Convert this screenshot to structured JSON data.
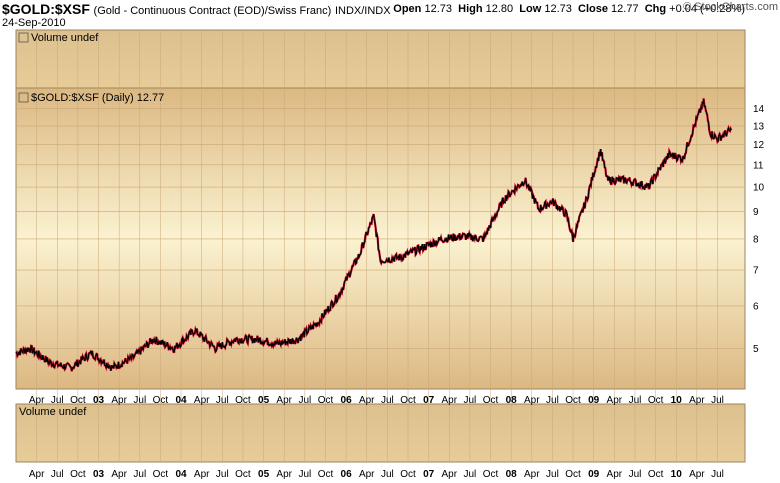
{
  "header": {
    "symbol": "$GOLD:$XSF",
    "description": "(Gold - Continuous Contract (EOD)/Swiss Franc)",
    "exchange": "INDX/INDX",
    "date": "24-Sep-2010",
    "open_label": "Open",
    "open": "12.73",
    "high_label": "High",
    "high": "12.80",
    "low_label": "Low",
    "low": "12.73",
    "close_label": "Close",
    "close": "12.77",
    "chg_label": "Chg",
    "chg": "+0.04 (+0.28%)",
    "brand": "© StockCharts.com"
  },
  "volume_top_label": "Volume undef",
  "volume_bottom_label": "Volume undef",
  "price_label": "$GOLD:$XSF (Daily) 12.77",
  "colors": {
    "bg_light": "#fbf2d0",
    "bg_dark": "#dcb882",
    "line": "#000000",
    "down": "#d01030",
    "grid": "#c8a878"
  },
  "chart_data": {
    "type": "line",
    "title": "$GOLD:$XSF (Daily) 12.77",
    "ylim": [
      4.2,
      15.3
    ],
    "y_scale": "log",
    "y_ticks": [
      5,
      6,
      7,
      8,
      9,
      10,
      11,
      12,
      13,
      14
    ],
    "x_labels": [
      "Apr",
      "Jul",
      "Oct",
      "03",
      "Apr",
      "Jul",
      "Oct",
      "04",
      "Apr",
      "Jul",
      "Oct",
      "05",
      "Apr",
      "Jul",
      "Oct",
      "06",
      "Apr",
      "Jul",
      "Oct",
      "07",
      "Apr",
      "Jul",
      "Oct",
      "08",
      "Apr",
      "Jul",
      "Oct",
      "09",
      "Apr",
      "Jul",
      "Oct",
      "10",
      "Apr",
      "Jul"
    ],
    "x": [
      "2002-01",
      "2002-03",
      "2002-06",
      "2002-09",
      "2002-12",
      "2003-03",
      "2003-06",
      "2003-09",
      "2003-12",
      "2004-03",
      "2004-06",
      "2004-09",
      "2004-12",
      "2005-03",
      "2005-06",
      "2005-09",
      "2005-12",
      "2006-03",
      "2006-05",
      "2006-06",
      "2006-09",
      "2006-12",
      "2007-03",
      "2007-06",
      "2007-09",
      "2007-12",
      "2008-03",
      "2008-05",
      "2008-07",
      "2008-09",
      "2008-10",
      "2008-12",
      "2009-02",
      "2009-03",
      "2009-06",
      "2009-09",
      "2009-12",
      "2010-02",
      "2010-05",
      "2010-06",
      "2010-07",
      "2010-09"
    ],
    "series": [
      {
        "values": [
          4.9,
          5.0,
          4.7,
          4.6,
          4.9,
          4.6,
          4.8,
          5.2,
          5.0,
          5.4,
          5.0,
          5.2,
          5.2,
          5.1,
          5.2,
          5.6,
          6.3,
          7.5,
          8.8,
          7.3,
          7.4,
          7.7,
          8.0,
          8.1,
          8.0,
          9.5,
          10.3,
          9.1,
          9.4,
          8.9,
          8.0,
          9.5,
          11.7,
          10.3,
          10.3,
          10.0,
          11.5,
          11.3,
          14.4,
          12.6,
          12.3,
          12.77
        ]
      }
    ],
    "grid": true
  }
}
